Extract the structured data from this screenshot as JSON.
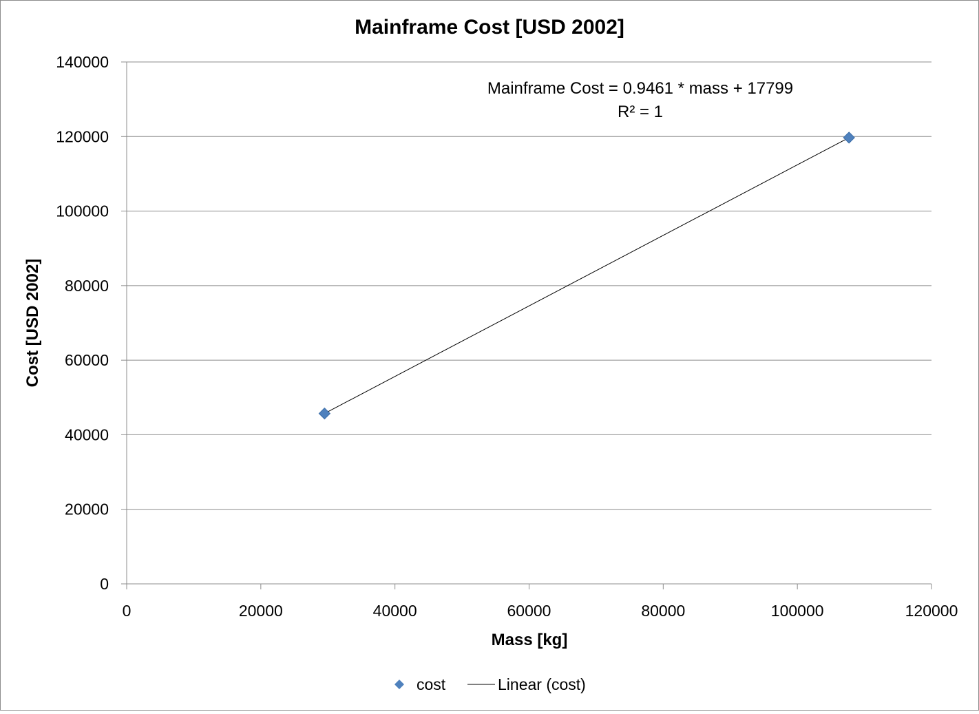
{
  "chart_data": {
    "type": "scatter",
    "title": "Mainframe Cost [USD 2002]",
    "xlabel": "Mass [kg]",
    "ylabel": "Cost [USD 2002]",
    "xlim": [
      0,
      120000
    ],
    "ylim": [
      0,
      140000
    ],
    "x_ticks": [
      "0",
      "20000",
      "40000",
      "60000",
      "80000",
      "100000",
      "120000"
    ],
    "y_ticks": [
      "0",
      "20000",
      "40000",
      "60000",
      "80000",
      "100000",
      "120000",
      "140000"
    ],
    "grid": {
      "horizontal": true,
      "vertical": false
    },
    "series": [
      {
        "name": "cost",
        "marker": "diamond",
        "color": "#4F81BD",
        "points": [
          {
            "x": 29500,
            "y": 45700
          },
          {
            "x": 107700,
            "y": 119700
          }
        ]
      }
    ],
    "trendline": {
      "name": "Linear (cost)",
      "type": "linear",
      "color": "#000000",
      "slope": 0.9461,
      "intercept": 17799,
      "x_range": [
        29500,
        107700
      ]
    },
    "annotation": {
      "equation": "Mainframe Cost = 0.9461 * mass + 17799",
      "r_squared": "R² = 1"
    },
    "legend": {
      "position": "bottom",
      "items": [
        "cost",
        "Linear (cost)"
      ]
    }
  }
}
